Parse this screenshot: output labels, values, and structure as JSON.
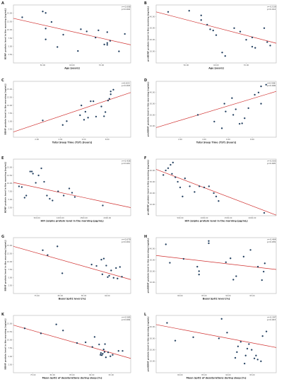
{
  "chart_data": [
    {
      "panel": "A",
      "type": "scatter",
      "xlabel": "Age [years]",
      "ylabel": "BDNF protein level in the morning [ng/mL]",
      "stats": [
        "r=-0.608",
        "p=0.004"
      ],
      "xlim": [
        40,
        80
      ],
      "ylim": [
        0,
        16
      ],
      "xticks": [
        "50.00",
        "60.00",
        "70.00"
      ],
      "yticks": [
        "2.50",
        "5.00",
        "7.50",
        "10.00",
        "12.50",
        "15.00"
      ],
      "points": [
        [
          43,
          12.6
        ],
        [
          50,
          14.2
        ],
        [
          51,
          13.8
        ],
        [
          51,
          9.5
        ],
        [
          51,
          6.5
        ],
        [
          53,
          11.3
        ],
        [
          55,
          4.4
        ],
        [
          57,
          7.8
        ],
        [
          62,
          3.3
        ],
        [
          63,
          9.3
        ],
        [
          65,
          8.7
        ],
        [
          68,
          7
        ],
        [
          69,
          9
        ],
        [
          71,
          5.1
        ],
        [
          72,
          5
        ],
        [
          72,
          5.5
        ],
        [
          73,
          6.1
        ],
        [
          72,
          8.5
        ],
        [
          76,
          3.2
        ],
        [
          78,
          8
        ]
      ],
      "line": [
        [
          40,
          12.3
        ],
        [
          80,
          5
        ]
      ]
    },
    {
      "panel": "B",
      "type": "scatter",
      "xlabel": "Age [years]",
      "ylabel": "proBDNF protein level in the morning [ng/mL]",
      "stats": [
        "r=-0.539",
        "p=0.014"
      ],
      "xlim": [
        40,
        80
      ],
      "ylim": [
        0,
        50
      ],
      "xticks": [
        "50.00",
        "60.00",
        "70.00"
      ],
      "yticks": [
        "10.00",
        "20.00",
        "30.00",
        "40.00"
      ],
      "points": [
        [
          44,
          44
        ],
        [
          51,
          45
        ],
        [
          55,
          41
        ],
        [
          55,
          37
        ],
        [
          57,
          33
        ],
        [
          58,
          29
        ],
        [
          59,
          28
        ],
        [
          60,
          24
        ],
        [
          62,
          9
        ],
        [
          63,
          6
        ],
        [
          66,
          30
        ],
        [
          68,
          27
        ],
        [
          70,
          20
        ],
        [
          72,
          22
        ],
        [
          72,
          14
        ],
        [
          73,
          13
        ],
        [
          76,
          30
        ],
        [
          77,
          18
        ],
        [
          78,
          15
        ]
      ],
      "line": [
        [
          40,
          44
        ],
        [
          80,
          17
        ]
      ]
    },
    {
      "panel": "C",
      "type": "scatter",
      "xlabel": "Total Sleep Time (TST) [hours]",
      "ylabel": "BDNF protein level in the morning [ng/mL]",
      "stats": [
        "r=0.623",
        "p=0.003"
      ],
      "xlim": [
        1,
        9.8
      ],
      "ylim": [
        0,
        16
      ],
      "xticks": [
        "2.00",
        "4.00",
        "6.00",
        "8.00"
      ],
      "yticks": [
        "2.50",
        "5.00",
        "7.50",
        "10.00",
        "12.50",
        "15.00"
      ],
      "points": [
        [
          3.2,
          4.8
        ],
        [
          4.7,
          3.5
        ],
        [
          5,
          4.6
        ],
        [
          6,
          6.3
        ],
        [
          6.1,
          9.1
        ],
        [
          6.3,
          5
        ],
        [
          6.4,
          7.3
        ],
        [
          6.6,
          5.6
        ],
        [
          6.8,
          10.3
        ],
        [
          7,
          10.3
        ],
        [
          7.2,
          5.9
        ],
        [
          7.6,
          8.8
        ],
        [
          7.8,
          6
        ],
        [
          7.9,
          7.2
        ],
        [
          8.1,
          10.5
        ],
        [
          8.2,
          11
        ],
        [
          8.3,
          12.3
        ],
        [
          8.5,
          13.6
        ],
        [
          8.3,
          13.1
        ]
      ],
      "line": [
        [
          1,
          1.5
        ],
        [
          9.8,
          12.8
        ]
      ]
    },
    {
      "panel": "D",
      "type": "scatter",
      "xlabel": "Total Sleep Time (TST) [hours]",
      "ylabel": "proBDNF protein level in the morning [ng/mL]",
      "stats": [
        "r=0.588",
        "p=0.006"
      ],
      "xlim": [
        1,
        10.5
      ],
      "ylim": [
        0,
        50
      ],
      "xticks": [
        "2.00",
        "4.00",
        "6.00",
        "8.00"
      ],
      "yticks": [
        "10.00",
        "20.00",
        "30.00",
        "40.00"
      ],
      "points": [
        [
          4.3,
          20
        ],
        [
          5.6,
          14
        ],
        [
          6.2,
          8
        ],
        [
          6.4,
          30
        ],
        [
          6.5,
          23
        ],
        [
          7,
          35
        ],
        [
          7.1,
          20
        ],
        [
          7.3,
          25
        ],
        [
          7.6,
          12
        ],
        [
          7.8,
          12.4
        ],
        [
          8,
          17
        ],
        [
          8.3,
          26
        ],
        [
          8.8,
          38
        ],
        [
          9.1,
          40
        ],
        [
          9.3,
          45.5
        ],
        [
          9.7,
          47
        ],
        [
          9.3,
          30
        ]
      ],
      "line": [
        [
          1,
          8.6
        ],
        [
          10.5,
          41
        ]
      ]
    },
    {
      "panel": "E",
      "type": "scatter",
      "xlabel": "HIF-1alpha protein level in the morning [pg/mL]",
      "ylabel": "BDNF protein level in the morning [ng/mL]",
      "stats": [
        "r=-0.426",
        "p=0.041"
      ],
      "xlim": [
        0,
        2100
      ],
      "ylim": [
        0,
        16
      ],
      "xticks": [
        "500.00",
        "1000.00",
        "1500.00",
        "2000.00"
      ],
      "yticks": [
        "2.50",
        "5.00",
        "7.50",
        "10.00",
        "12.50",
        "15.00"
      ],
      "points": [
        [
          100,
          8.3
        ],
        [
          150,
          8.1
        ],
        [
          200,
          5.1
        ],
        [
          230,
          5.7
        ],
        [
          300,
          12.5
        ],
        [
          330,
          12.5
        ],
        [
          350,
          11.9
        ],
        [
          400,
          9.3
        ],
        [
          450,
          11.4
        ],
        [
          500,
          13.4
        ],
        [
          550,
          9.6
        ],
        [
          600,
          5.7
        ],
        [
          650,
          4.8
        ],
        [
          700,
          4.3
        ],
        [
          800,
          6.9
        ],
        [
          900,
          5.7
        ],
        [
          1000,
          7.7
        ],
        [
          1050,
          6.5
        ],
        [
          1100,
          5.3
        ],
        [
          1600,
          2.9
        ]
      ],
      "line": [
        [
          0,
          9.4
        ],
        [
          2100,
          2.3
        ]
      ]
    },
    {
      "panel": "F",
      "type": "scatter",
      "xlabel": "HIF-1alpha protein level in the morning [pg/mL]",
      "ylabel": "proBDNF protein level in the morning [ng/mL]",
      "stats": [
        "r=-0.503",
        "p=0.005"
      ],
      "xlim": [
        0,
        2500
      ],
      "ylim": [
        0,
        50
      ],
      "xticks": [
        "500.00",
        "1000.00",
        "1500.00",
        "2000.00"
      ],
      "yticks": [
        "10.00",
        "20.00",
        "30.00",
        "40.00"
      ],
      "points": [
        [
          150,
          36
        ],
        [
          200,
          40
        ],
        [
          250,
          42
        ],
        [
          300,
          45
        ],
        [
          330,
          37
        ],
        [
          350,
          47
        ],
        [
          400,
          34
        ],
        [
          450,
          30
        ],
        [
          500,
          25
        ],
        [
          550,
          17
        ],
        [
          600,
          33
        ],
        [
          700,
          26
        ],
        [
          800,
          21
        ],
        [
          900,
          26
        ],
        [
          1000,
          25
        ],
        [
          1100,
          26
        ],
        [
          1200,
          20
        ],
        [
          1300,
          13
        ],
        [
          1250,
          17
        ],
        [
          2250,
          2.5
        ]
      ],
      "line": [
        [
          0,
          41
        ],
        [
          2500,
          0.5
        ]
      ]
    },
    {
      "panel": "G",
      "type": "scatter",
      "xlabel": "Basal SpO2 level [%]",
      "ylabel": "BDNF protein level in the morning [ng/mL]",
      "stats": [
        "r=-0.679",
        "p=0.001"
      ],
      "xlim": [
        71,
        95
      ],
      "ylim": [
        0,
        16
      ],
      "xticks": [
        "75.00",
        "80.00",
        "85.00",
        "90.00"
      ],
      "yticks": [
        "2.50",
        "5.00",
        "7.50",
        "10.00",
        "12.50",
        "15.00"
      ],
      "points": [
        [
          77,
          12.4
        ],
        [
          78,
          11
        ],
        [
          80,
          13.5
        ],
        [
          81,
          5.8
        ],
        [
          87,
          8.3
        ],
        [
          88,
          7.9
        ],
        [
          89,
          9.7
        ],
        [
          89.5,
          10
        ],
        [
          89.2,
          5.5
        ],
        [
          90,
          8
        ],
        [
          90.3,
          4.7
        ],
        [
          90.6,
          5.1
        ],
        [
          91,
          6.6
        ],
        [
          91.5,
          4.5
        ],
        [
          92,
          7.3
        ],
        [
          92.3,
          4.3
        ],
        [
          92.8,
          7.6
        ],
        [
          93.2,
          4.8
        ]
      ],
      "line": [
        [
          71,
          13.5
        ],
        [
          95,
          4
        ]
      ]
    },
    {
      "panel": "H",
      "type": "scatter",
      "xlabel": "Basal SpO2 level [%]",
      "ylabel": "proBDNF protein level in the morning [ng/mL]",
      "stats": [
        "r=-0.464",
        "p=0.039"
      ],
      "xlim": [
        75,
        96
      ],
      "ylim": [
        0,
        50
      ],
      "xticks": [
        "80.00",
        "85.00",
        "90.00",
        "95.00"
      ],
      "yticks": [
        "10.00",
        "20.00",
        "30.00",
        "40.00"
      ],
      "points": [
        [
          76.7,
          44
        ],
        [
          77.4,
          27.5
        ],
        [
          79.8,
          31
        ],
        [
          82.2,
          24
        ],
        [
          82.5,
          20
        ],
        [
          82.5,
          17
        ],
        [
          84.2,
          45
        ],
        [
          84.2,
          47
        ],
        [
          87.2,
          28
        ],
        [
          88,
          31.5
        ],
        [
          88.5,
          12.4
        ],
        [
          89,
          15.5
        ],
        [
          90.3,
          33
        ],
        [
          91.5,
          39
        ],
        [
          92.8,
          24
        ],
        [
          93.5,
          12
        ],
        [
          93.8,
          19.6
        ],
        [
          94,
          27
        ]
      ],
      "line": [
        [
          75,
          34
        ],
        [
          96,
          21.5
        ]
      ]
    },
    {
      "panel": "K",
      "type": "scatter",
      "xlabel": "Mean SpO2 of desaturations during sleep [%]",
      "ylabel": "BDNF protein level in the morning [ng/mL]",
      "stats": [
        "r=-0.585",
        "p=0.009"
      ],
      "xlim": [
        70,
        96
      ],
      "ylim": [
        0,
        16
      ],
      "xticks": [
        "75.00",
        "80.00",
        "85.00",
        "90.00",
        "95.00"
      ],
      "yticks": [
        "2.50",
        "5.00",
        "7.50",
        "10.00",
        "12.50",
        "15.00"
      ],
      "points": [
        [
          72.5,
          12.4
        ],
        [
          76.1,
          11
        ],
        [
          79.5,
          13.5
        ],
        [
          81,
          11.8
        ],
        [
          84.1,
          8.3
        ],
        [
          86,
          8.5
        ],
        [
          87.5,
          7.2
        ],
        [
          88,
          10
        ],
        [
          89,
          7.9
        ],
        [
          89.3,
          5
        ],
        [
          89.4,
          5.5
        ],
        [
          89.6,
          4.9
        ],
        [
          89.8,
          5.3
        ],
        [
          90,
          6.5
        ],
        [
          90.2,
          5.8
        ],
        [
          90.3,
          8
        ],
        [
          90.5,
          4.3
        ],
        [
          91,
          5.7
        ],
        [
          91.5,
          4.6
        ],
        [
          92,
          5
        ],
        [
          93.3,
          6.1
        ],
        [
          94.2,
          6.1
        ]
      ],
      "line": [
        [
          70,
          13.3
        ],
        [
          96,
          4
        ]
      ]
    },
    {
      "panel": "L",
      "type": "scatter",
      "xlabel": "Mean SpO2 of desaturations during sleep [%]",
      "ylabel": "proBDNF protein level in the morning [ng/mL]",
      "stats": [
        "r=-0.397",
        "p=0.043"
      ],
      "xlim": [
        75,
        97
      ],
      "ylim": [
        0,
        50
      ],
      "xticks": [
        "80.00",
        "85.00",
        "90.00",
        "95.00"
      ],
      "yticks": [
        "10.00",
        "20.00",
        "30.00",
        "40.00"
      ],
      "points": [
        [
          77,
          43.5
        ],
        [
          78.5,
          28
        ],
        [
          81.8,
          31
        ],
        [
          86.5,
          30
        ],
        [
          87,
          47
        ],
        [
          88,
          35
        ],
        [
          89.5,
          13
        ],
        [
          89.8,
          18
        ],
        [
          90,
          23
        ],
        [
          90.5,
          27
        ],
        [
          91.2,
          8
        ],
        [
          91.4,
          15
        ],
        [
          91.7,
          21
        ],
        [
          92,
          25
        ],
        [
          92.5,
          20
        ],
        [
          93,
          12.5
        ],
        [
          93.3,
          15
        ],
        [
          93.6,
          11.5
        ],
        [
          94.2,
          10
        ],
        [
          94.5,
          32
        ],
        [
          95.2,
          36
        ]
      ],
      "line": [
        [
          75,
          42
        ],
        [
          97,
          22
        ]
      ]
    }
  ]
}
